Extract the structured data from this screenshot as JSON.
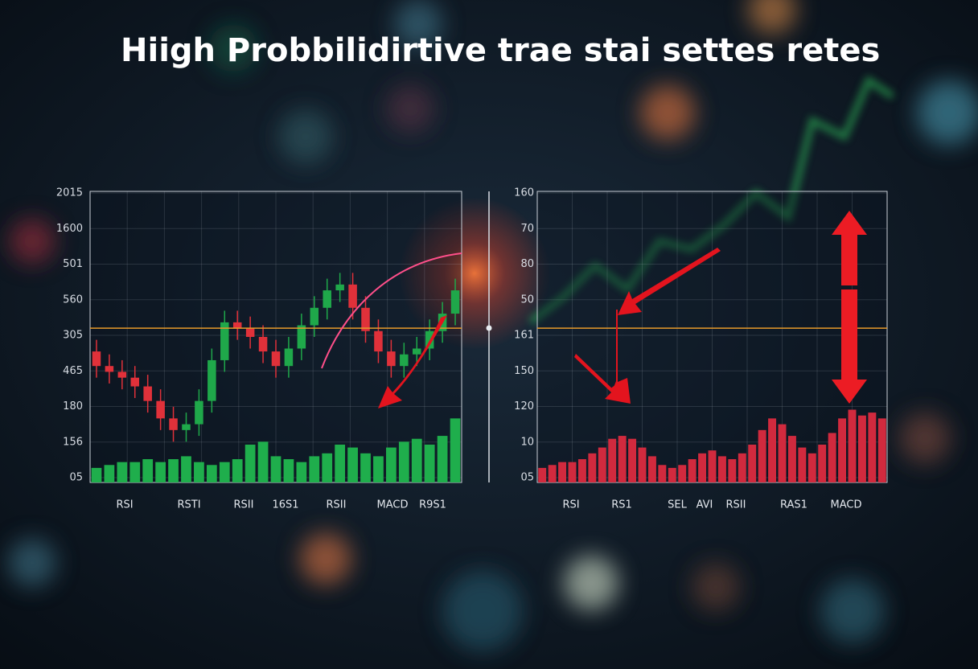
{
  "title": "Hiigh Probbilidirtive trae stai settes retes",
  "chart_data": [
    {
      "type": "candlestick",
      "y_labels": [
        "2015",
        "1600",
        "501",
        "560",
        "305",
        "465",
        "180",
        "156",
        "05"
      ],
      "x_labels": [
        "RSI",
        "RSTI",
        "RSII",
        "16S1",
        "RSII",
        "MACD",
        "R9S1"
      ],
      "ylim": [
        0,
        100
      ],
      "threshold": 53,
      "open": [
        45,
        40,
        38,
        36,
        33,
        28,
        22,
        18,
        20,
        28,
        42,
        55,
        53,
        50,
        45,
        40,
        46,
        54,
        60,
        66,
        68,
        60,
        52,
        45,
        40,
        44,
        46,
        52,
        58
      ],
      "close": [
        40,
        38,
        36,
        33,
        28,
        22,
        18,
        20,
        28,
        42,
        55,
        53,
        50,
        45,
        40,
        46,
        54,
        60,
        66,
        68,
        60,
        52,
        45,
        40,
        44,
        46,
        52,
        58,
        66
      ],
      "high": [
        49,
        44,
        42,
        40,
        37,
        32,
        26,
        24,
        32,
        46,
        59,
        59,
        57,
        54,
        49,
        50,
        58,
        64,
        70,
        72,
        72,
        64,
        56,
        49,
        48,
        50,
        56,
        62,
        70
      ],
      "low": [
        36,
        34,
        32,
        29,
        24,
        18,
        14,
        14,
        16,
        24,
        38,
        49,
        46,
        41,
        36,
        36,
        42,
        50,
        56,
        62,
        56,
        48,
        41,
        36,
        36,
        40,
        42,
        48,
        54
      ],
      "volume": [
        5,
        6,
        7,
        7,
        8,
        7,
        8,
        9,
        7,
        6,
        7,
        8,
        13,
        14,
        9,
        8,
        7,
        9,
        10,
        13,
        12,
        10,
        9,
        12,
        14,
        15,
        13,
        16,
        22
      ],
      "up_color": "#1fa84a",
      "down_color": "#e0313a",
      "volume_color": "#1fae4c"
    },
    {
      "type": "volume",
      "y_labels": [
        "160",
        "70",
        "80",
        "50",
        "161",
        "150",
        "120",
        "10",
        "05"
      ],
      "x_labels": [
        "RSI",
        "RS1",
        "SEL",
        "AVI",
        "RSII",
        "RAS1",
        "MACD"
      ],
      "ylim": [
        0,
        100
      ],
      "threshold": 53,
      "volume": [
        5,
        6,
        7,
        7,
        8,
        10,
        12,
        15,
        16,
        15,
        12,
        9,
        6,
        5,
        6,
        8,
        10,
        11,
        9,
        8,
        10,
        13,
        18,
        22,
        20,
        16,
        12,
        10,
        13,
        17,
        22,
        25,
        23,
        24,
        22
      ],
      "volume_color": "#d12a3e"
    }
  ]
}
